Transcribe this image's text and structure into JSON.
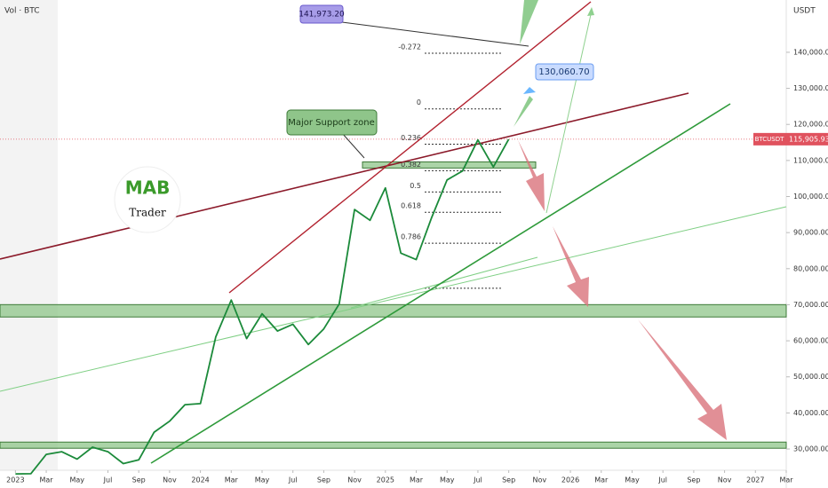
{
  "chart_data": {
    "type": "line",
    "title": "Vol · BTC",
    "currency": "USDT",
    "symbol": "BTCUSDT",
    "last_price": {
      "value": 115905.93,
      "label": "115,905.93"
    },
    "x": [
      "2023-01",
      "2023-02",
      "2023-03",
      "2023-04",
      "2023-05",
      "2023-06",
      "2023-07",
      "2023-08",
      "2023-09",
      "2023-10",
      "2023-11",
      "2023-12",
      "2024-01",
      "2024-02",
      "2024-03",
      "2024-04",
      "2024-05",
      "2024-06",
      "2024-07",
      "2024-08",
      "2024-09",
      "2024-10",
      "2024-11",
      "2024-12",
      "2025-01",
      "2025-02",
      "2025-03",
      "2025-04",
      "2025-05",
      "2025-06",
      "2025-07",
      "2025-08",
      "2025-09"
    ],
    "series": [
      {
        "name": "BTCUSDT",
        "color": "#1b8a3a",
        "values": [
          23100,
          23150,
          28500,
          29250,
          27200,
          30500,
          29250,
          25950,
          26970,
          34650,
          37700,
          42280,
          42580,
          61100,
          71300,
          60600,
          67500,
          62700,
          64600,
          58970,
          63300,
          70200,
          96400,
          93400,
          102400,
          84300,
          82500,
          94200,
          104600,
          107100,
          115700,
          108200,
          115900
        ]
      }
    ],
    "xlim": [
      "2022-12",
      "2027-03"
    ],
    "xticks": [
      {
        "value": "2023-01",
        "label": "2023"
      },
      {
        "value": "2023-03",
        "label": "Mar"
      },
      {
        "value": "2023-05",
        "label": "May"
      },
      {
        "value": "2023-07",
        "label": "Jul"
      },
      {
        "value": "2023-09",
        "label": "Sep"
      },
      {
        "value": "2023-11",
        "label": "Nov"
      },
      {
        "value": "2024-01",
        "label": "2024"
      },
      {
        "value": "2024-03",
        "label": "Mar"
      },
      {
        "value": "2024-05",
        "label": "May"
      },
      {
        "value": "2024-07",
        "label": "Jul"
      },
      {
        "value": "2024-09",
        "label": "Sep"
      },
      {
        "value": "2024-11",
        "label": "Nov"
      },
      {
        "value": "2025-01",
        "label": "2025"
      },
      {
        "value": "2025-03",
        "label": "Mar"
      },
      {
        "value": "2025-05",
        "label": "May"
      },
      {
        "value": "2025-07",
        "label": "Jul"
      },
      {
        "value": "2025-09",
        "label": "Sep"
      },
      {
        "value": "2025-11",
        "label": "Nov"
      },
      {
        "value": "2026-01",
        "label": "2026"
      },
      {
        "value": "2026-03",
        "label": "Mar"
      },
      {
        "value": "2026-05",
        "label": "May"
      },
      {
        "value": "2026-07",
        "label": "Jul"
      },
      {
        "value": "2026-09",
        "label": "Sep"
      },
      {
        "value": "2026-11",
        "label": "Nov"
      },
      {
        "value": "2027-01",
        "label": "2027"
      },
      {
        "value": "2027-03",
        "label": "Mar"
      }
    ],
    "ylim": [
      24100,
      154500
    ],
    "yticks": [
      {
        "value": 30000,
        "label": "30,000.00"
      },
      {
        "value": 40000,
        "label": "40,000.00"
      },
      {
        "value": 50000,
        "label": "50,000.00"
      },
      {
        "value": 60000,
        "label": "60,000.00"
      },
      {
        "value": 70000,
        "label": "70,000.00"
      },
      {
        "value": 80000,
        "label": "80,000.00"
      },
      {
        "value": 90000,
        "label": "90,000.00"
      },
      {
        "value": 100000,
        "label": "100,000.00"
      },
      {
        "value": 110000,
        "label": "110,000.00"
      },
      {
        "value": 120000,
        "label": "120,000.00"
      },
      {
        "value": 130000,
        "label": "130,000.00"
      },
      {
        "value": 140000,
        "label": "140,000.00"
      }
    ],
    "grid": false,
    "fib_levels": [
      {
        "level": -0.272,
        "price": 139750
      },
      {
        "level": 0,
        "price": 124310
      },
      {
        "level": 0.236,
        "price": 114510
      },
      {
        "level": 0.382,
        "price": 107160
      },
      {
        "level": 0.5,
        "price": 101270
      },
      {
        "level": 0.618,
        "price": 95640
      },
      {
        "level": 0.786,
        "price": 87060
      },
      {
        "level": null,
        "price": 74560
      }
    ],
    "zones": [
      {
        "low": 66600,
        "high": 70030
      },
      {
        "low": 30200,
        "high": 31910
      },
      {
        "low": 107900,
        "high": 109600
      }
    ],
    "annotations": {
      "target_high": "141,973.20",
      "target_mid": "130,060.70",
      "support": "Major Support zone",
      "logo": "MAB",
      "logo_sub": "Trader"
    }
  }
}
